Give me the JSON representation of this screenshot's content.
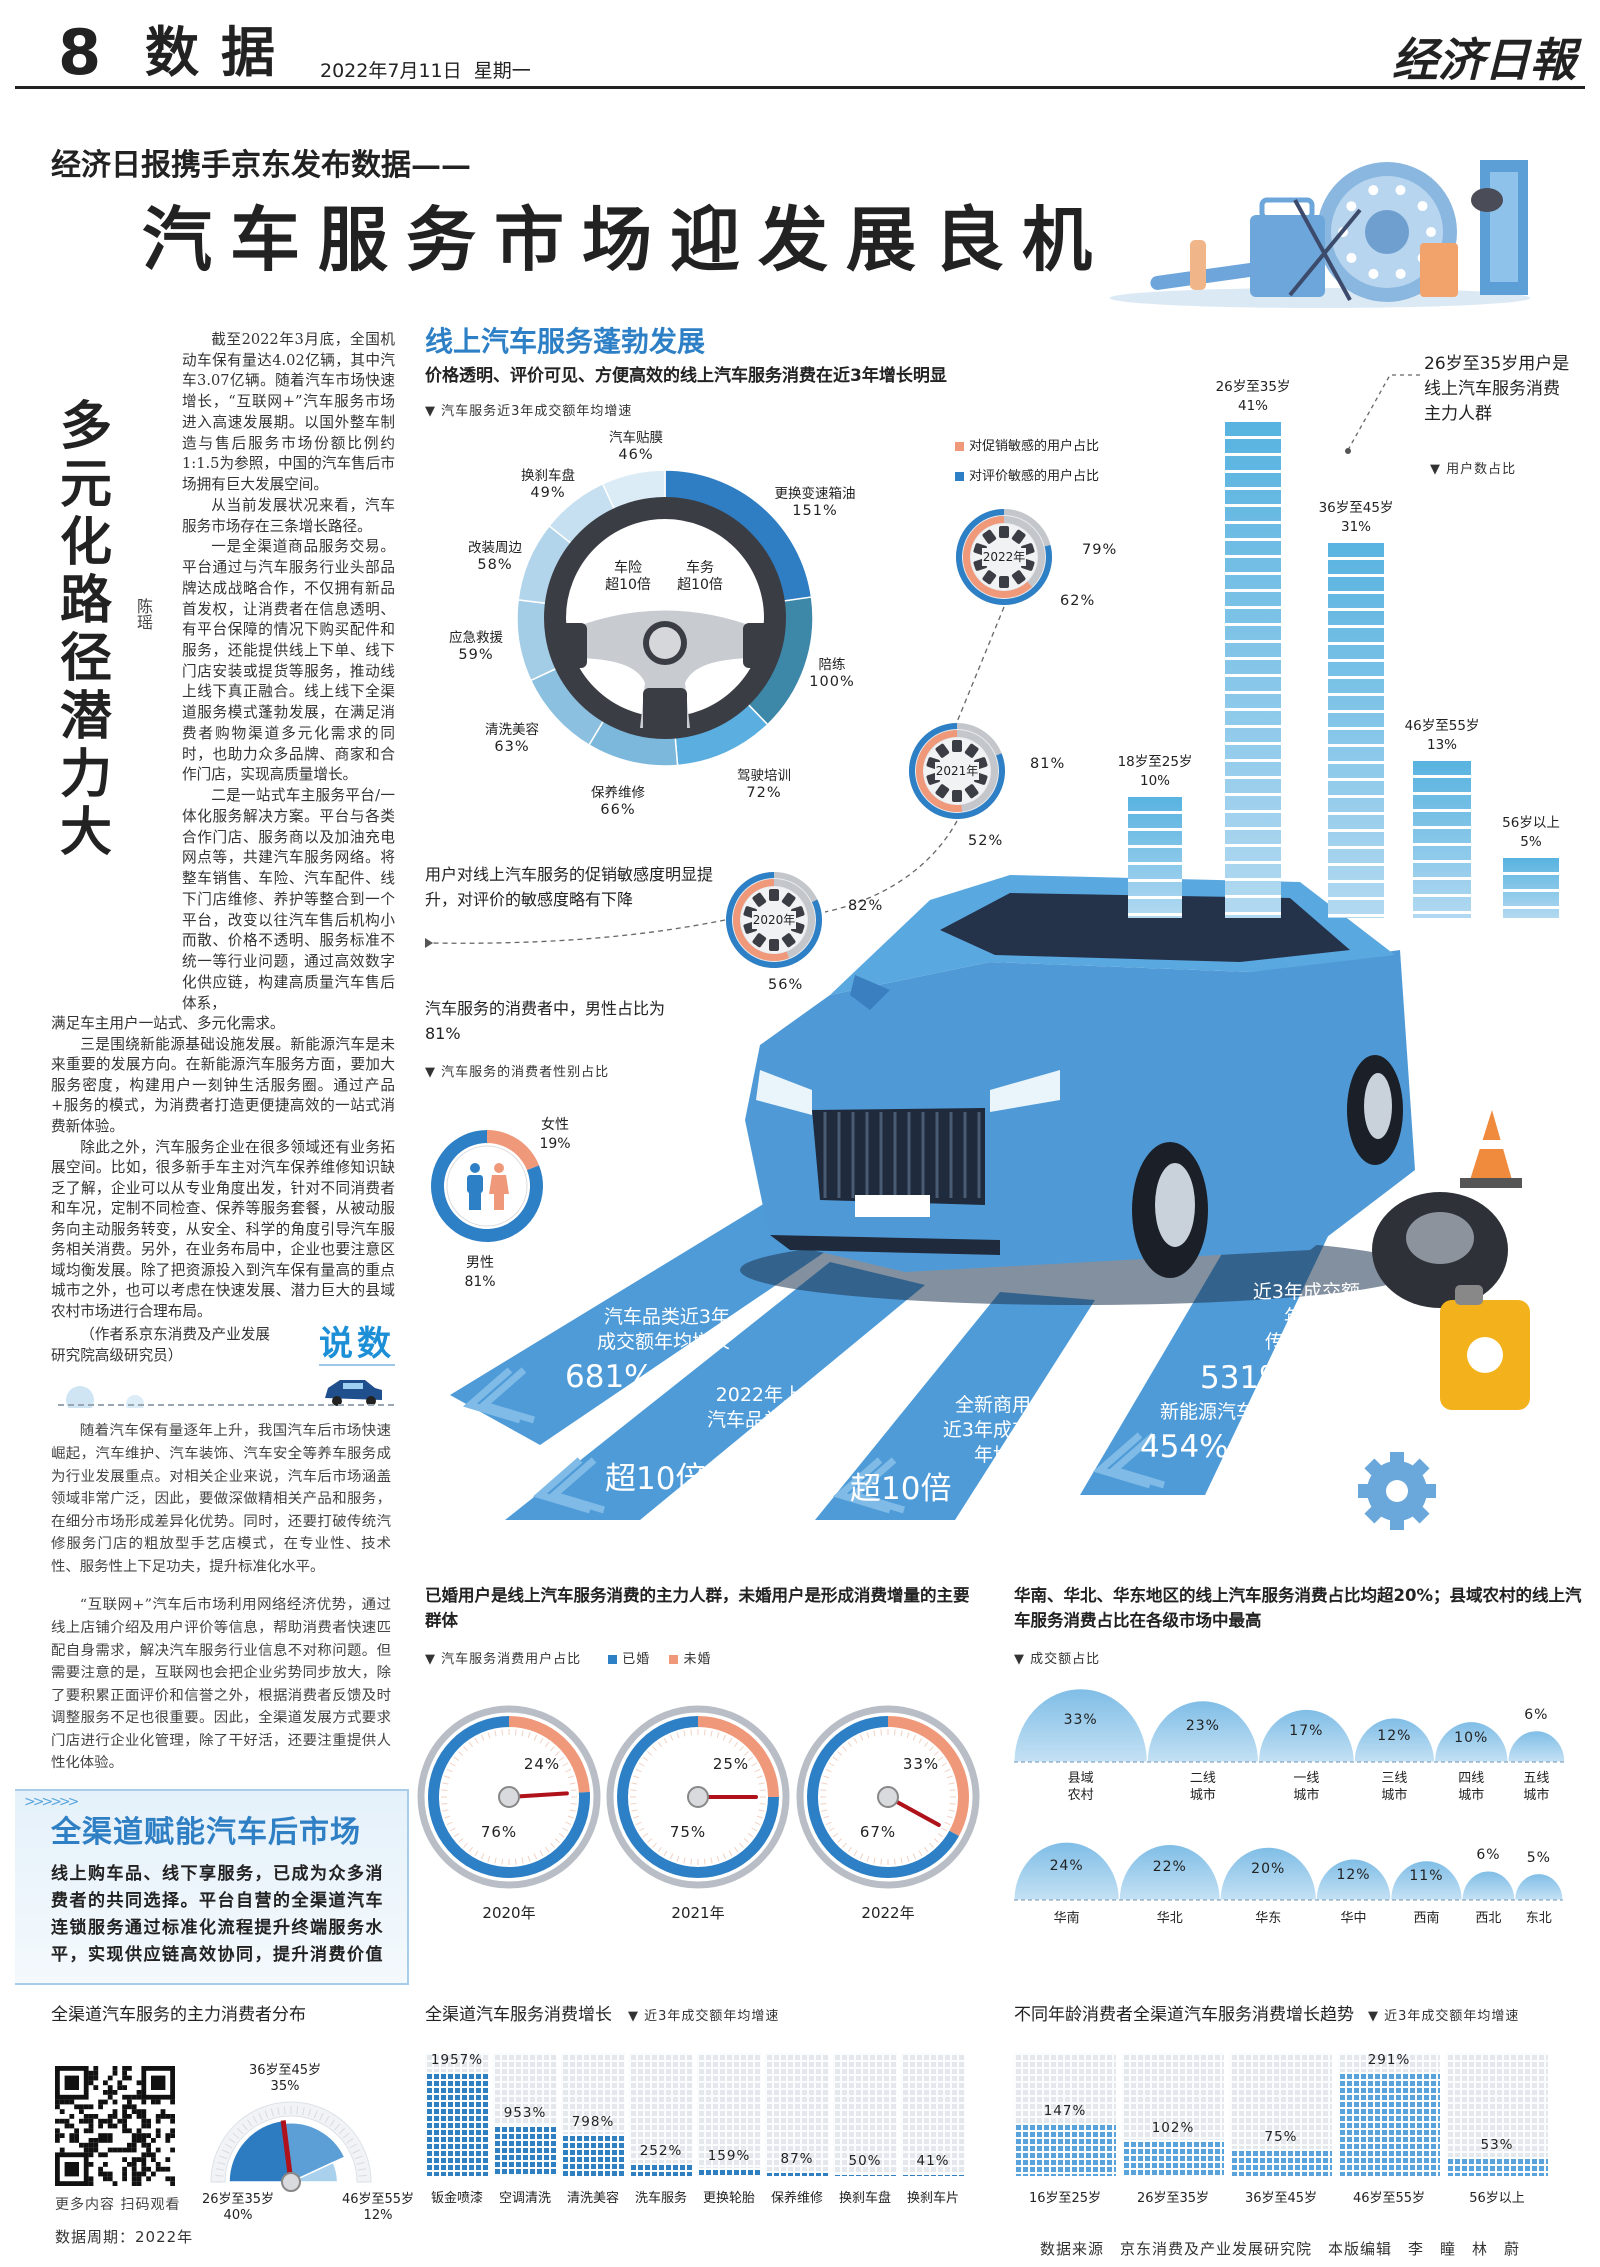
{
  "header": {
    "page_no": "8",
    "section": "数据",
    "date": "2022年7月11日",
    "weekday": "星期一",
    "logo": "经济日報"
  },
  "headline": {
    "kicker": "经济日报携手京东发布数据——",
    "title": "汽车服务市场迎发展良机"
  },
  "article": {
    "title": "多元化路径潜力大",
    "author": "陈瑶",
    "narrow_paragraphs": [
      "截至2022年3月底，全国机动车保有量达4.02亿辆，其中汽车3.07亿辆。随着汽车市场快速增长，“互联网+”汽车服务市场进入高速发展期。以国外整车制造与售后服务市场份额比例约1:1.5为参照，中国的汽车售后市场拥有巨大发展空间。",
      "从当前发展状况来看，汽车服务市场存在三条增长路径。",
      "一是全渠道商品服务交易。平台通过与汽车服务行业头部品牌达成战略合作，不仅拥有新品首发权，让消费者在信息透明、有平台保障的情况下购买配件和服务，还能提供线上下单、线下门店安装或提货等服务，推动线上线下真正融合。线上线下全渠道服务模式蓬勃发展，在满足消费者购物渠道多元化需求的同时，也助力众多品牌、商家和合作门店，实现高质量增长。",
      "二是一站式车主服务平台/一体化服务解决方案。平台与各类合作门店、服务商以及加油充电网点等，共建汽车服务网络。将整车销售、车险、汽车配件、线下门店维修、养护等整合到一个平台，改变以往汽车售后机构小而散、价格不透明、服务标准不统一等行业问题，通过高效数字化供应链，构建高质量汽车售后体系，"
    ],
    "wide_continuation": "满足车主用户一站式、多元化需求。",
    "wide_paragraphs": [
      "三是围绕新能源基础设施发展。新能源汽车是未来重要的发展方向。在新能源汽车服务方面，要加大服务密度，构建用户一刻钟生活服务圈。通过产品+服务的模式，为消费者打造更便捷高效的一站式消费新体验。",
      "除此之外，汽车服务企业在很多领域还有业务拓展空间。比如，很多新手车主对汽车保养维修知识缺乏了解，企业可以从专业角度出发，针对不同消费者和车况，定制不同检查、保养等服务套餐，从被动服务向主动服务转变，从安全、科学的角度引导汽车服务相关消费。另外，在业务布局中，企业也要注意区域均衡发展。除了把资源投入到汽车保有量高的重点城市之外，也可以考虑在快速发展、潜力巨大的县域农村市场进行合理布局。"
    ],
    "byline": "（作者系京东消费及产业发展研究院高级研究员）",
    "tag": "说数"
  },
  "side_text": {
    "paragraphs": [
      "随着汽车保有量逐年上升，我国汽车后市场快速崛起，汽车维护、汽车装饰、汽车安全等养车服务成为行业发展重点。对相关企业来说，汽车后市场涵盖领域非常广泛，因此，要做深做精相关产品和服务，在细分市场形成差异化优势。同时，还要打破传统汽修服务门店的粗放型手艺店模式，在专业性、技术性、服务性上下足功夫，提升标准化水平。",
      "“互联网+”汽车后市场利用网络经济优势，通过线上店铺介绍及用户评价等信息，帮助消费者快速匹配自身需求，解决汽车服务行业信息不对称问题。但需要注意的是，互联网也会把企业劣势同步放大，除了要积累正面评价和信誉之外，根据消费者反馈及时调整服务不足也很重要。因此，全渠道发展方式要求门店进行企业化管理，除了干好活，还要注重提供人性化体验。"
    ]
  },
  "feature_box": {
    "title": "全渠道赋能汽车后市场",
    "body": "线上购车品、线下享服务，已成为众多消费者的共同选择。平台自营的全渠道汽车连锁服务通过标准化流程提升终端服务水平，实现供应链高效协同，提升消费价值"
  },
  "online": {
    "title": "线上汽车服务蓬勃发展",
    "subtitle": "价格透明、评价可见、方便高效的线上汽车服务消费在近3年增长明显",
    "sensitivity_text": "用户对线上汽车服务的促销敏感度明显提升，对评价的敏感度略有下降",
    "age_callout": "26岁至35岁用户是线上汽车服务消费主力人群",
    "gender_title": "汽车服务的消费者中，男性占比为81%"
  },
  "highlights": [
    {
      "text": "汽车品类近3年\n成交额年均增长",
      "value": "681%"
    },
    {
      "text": "2022年上半年\n汽车品类成交额\n同比增长",
      "value": "超10倍"
    },
    {
      "text": "全新商用车\n近3年成交额\n年均增长",
      "value": "超10倍"
    },
    {
      "text": "近3年成交额\n年均增长\n传统乘用车",
      "value": "531%",
      "text2": "新能源汽车",
      "value2": "454%"
    }
  ],
  "marital_title": "已婚用户是线上汽车服务消费的主力人群，未婚用户是形成消费增量的主要群体",
  "region_title": "华南、华北、华东地区的线上汽车服务消费占比均超20%；县域农村的线上汽车服务消费占比在各级市场中最高",
  "qr": {
    "caption": "更多内容 扫码观看"
  },
  "data_period": "数据周期：2022年",
  "footer": "数据来源　京东消费及产业发展研究院　本版编辑　李　瞳　林　蔚",
  "colors": {
    "accent_blue": "#2e80c6",
    "orange": "#f0997a",
    "light_blue": "#8cc6ea",
    "gray": "#b9bec6",
    "needle_red": "#b0121b"
  },
  "chart_data": [
    {
      "id": "service_growth",
      "type": "pie",
      "note": "汽车服务近3年成交额年均增速",
      "categories": [
        "更换变速箱油",
        "陪练",
        "驾驶培训",
        "保养维修",
        "清洗美容",
        "应急救援",
        "改装周边",
        "换刹车盘",
        "汽车贴膜"
      ],
      "values": [
        151,
        100,
        72,
        66,
        63,
        59,
        58,
        49,
        46
      ],
      "unit": "%",
      "colors": [
        "#2f7dc2",
        "#3d87a8",
        "#5aaee0",
        "#7bb8dc",
        "#8cc0e0",
        "#a3cce7",
        "#b3d5ec",
        "#c6e0f1",
        "#dcecf6"
      ],
      "center_labels": [
        {
          "name": "车险",
          "value": "超10倍"
        },
        {
          "name": "车务",
          "value": "超10倍"
        }
      ]
    },
    {
      "id": "sensitivity",
      "type": "pie",
      "categories": [
        "2020年",
        "2021年",
        "2022年"
      ],
      "series": [
        {
          "name": "对促销敏感的用户占比",
          "values": [
            56,
            52,
            62
          ],
          "color": "#f0997a"
        },
        {
          "name": "对评价敏感的用户占比",
          "values": [
            82,
            81,
            79
          ],
          "color": "#2e80c6"
        }
      ],
      "unit": "%"
    },
    {
      "id": "age_users",
      "type": "bar",
      "note": "用户数占比",
      "categories": [
        "18岁至25岁",
        "26岁至35岁",
        "36岁至45岁",
        "46岁至55岁",
        "56岁以上"
      ],
      "values": [
        10,
        41,
        31,
        13,
        5
      ],
      "unit": "%"
    },
    {
      "id": "gender",
      "type": "pie",
      "note": "汽车服务的消费者性别占比",
      "categories": [
        "男性",
        "女性"
      ],
      "values": [
        81,
        19
      ],
      "unit": "%",
      "colors": [
        "#2e80c6",
        "#f0997a"
      ]
    },
    {
      "id": "marital",
      "type": "pie",
      "note": "汽车服务消费用户占比",
      "categories": [
        "2020年",
        "2021年",
        "2022年"
      ],
      "series": [
        {
          "name": "已婚",
          "values": [
            76,
            75,
            67
          ],
          "color": "#2e80c6"
        },
        {
          "name": "未婚",
          "values": [
            24,
            25,
            33
          ],
          "color": "#f0997a"
        }
      ],
      "unit": "%"
    },
    {
      "id": "market_tier",
      "type": "bar",
      "note": "成交额占比",
      "categories": [
        "县域\n农村",
        "二线\n城市",
        "一线\n城市",
        "三线\n城市",
        "四线\n城市",
        "五线\n城市"
      ],
      "values": [
        33,
        23,
        17,
        12,
        10,
        6
      ],
      "unit": "%"
    },
    {
      "id": "region",
      "type": "bar",
      "categories": [
        "华南",
        "华北",
        "华东",
        "华中",
        "西南",
        "西北",
        "东北"
      ],
      "values": [
        24,
        22,
        20,
        12,
        11,
        6,
        5
      ],
      "unit": "%"
    },
    {
      "id": "main_consumers",
      "type": "pie",
      "title": "全渠道汽车服务的主力消费者分布",
      "categories": [
        "26岁至35岁",
        "36岁至45岁",
        "46岁至55岁"
      ],
      "values": [
        40,
        35,
        12
      ],
      "unit": "%",
      "colors": [
        "#2d7cc1",
        "#5b9fd6",
        "#a9d0ec"
      ]
    },
    {
      "id": "channel_growth",
      "type": "bar",
      "title": "全渠道汽车服务消费增长",
      "note": "近3年成交额年均增速",
      "categories": [
        "钣金喷漆",
        "空调清洗",
        "清洗美容",
        "洗车服务",
        "更换轮胎",
        "保养维修",
        "换刹车盘",
        "换刹车片"
      ],
      "values": [
        1957,
        953,
        798,
        252,
        159,
        87,
        50,
        41
      ],
      "unit": "%"
    },
    {
      "id": "age_growth",
      "type": "bar",
      "title": "不同年龄消费者全渠道汽车服务消费增长趋势",
      "note": "近3年成交额年均增速",
      "categories": [
        "16岁至25岁",
        "26岁至35岁",
        "36岁至45岁",
        "46岁至55岁",
        "56岁以上"
      ],
      "values": [
        147,
        102,
        75,
        291,
        53
      ],
      "unit": "%"
    }
  ]
}
